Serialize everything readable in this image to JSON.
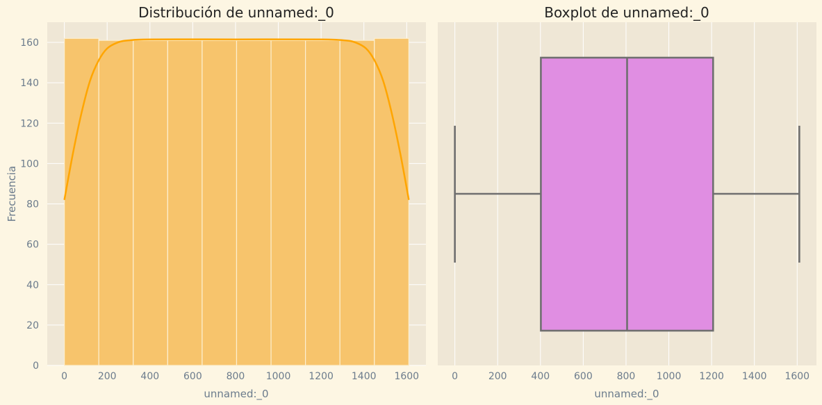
{
  "chart_data": [
    {
      "type": "bar",
      "subtype": "histogram",
      "title": "Distribución de unnamed:_0",
      "xlabel": "unnamed:_0",
      "ylabel": "Frecuencia",
      "xlim": [
        -80,
        1690
      ],
      "ylim": [
        0,
        170
      ],
      "xticks": [
        0,
        200,
        400,
        600,
        800,
        1000,
        1200,
        1400,
        1600
      ],
      "yticks": [
        0,
        20,
        40,
        60,
        80,
        100,
        120,
        140,
        160
      ],
      "bin_edges": [
        0,
        161,
        322,
        483,
        644,
        805,
        966,
        1127,
        1288,
        1449,
        1610
      ],
      "values": [
        162,
        161,
        161,
        161,
        161,
        161,
        161,
        161,
        161,
        162
      ],
      "kde": {
        "x": [
          0,
          40,
          80,
          120,
          160,
          200,
          250,
          300,
          400,
          800,
          1200,
          1310,
          1360,
          1410,
          1450,
          1490,
          1530,
          1570,
          1610
        ],
        "y": [
          82,
          105,
          125,
          141,
          151,
          157,
          160,
          161,
          161.5,
          161.5,
          161.5,
          161,
          160,
          157,
          151,
          141,
          125,
          105,
          82
        ]
      },
      "grid": true,
      "colors": {
        "bar": "#f7c46c",
        "bar_edge": "#fcefd0",
        "kde": "#ffa500"
      }
    },
    {
      "type": "boxplot",
      "title": "Boxplot de unnamed:_0",
      "xlabel": "unnamed:_0",
      "xlim": [
        -80,
        1690
      ],
      "xticks": [
        0,
        200,
        400,
        600,
        800,
        1000,
        1200,
        1400,
        1600
      ],
      "min": 0,
      "q1": 402,
      "median": 805,
      "q3": 1207,
      "max": 1610,
      "grid": true,
      "colors": {
        "box": "#e08ee2",
        "line": "#6f6f6f"
      }
    }
  ]
}
